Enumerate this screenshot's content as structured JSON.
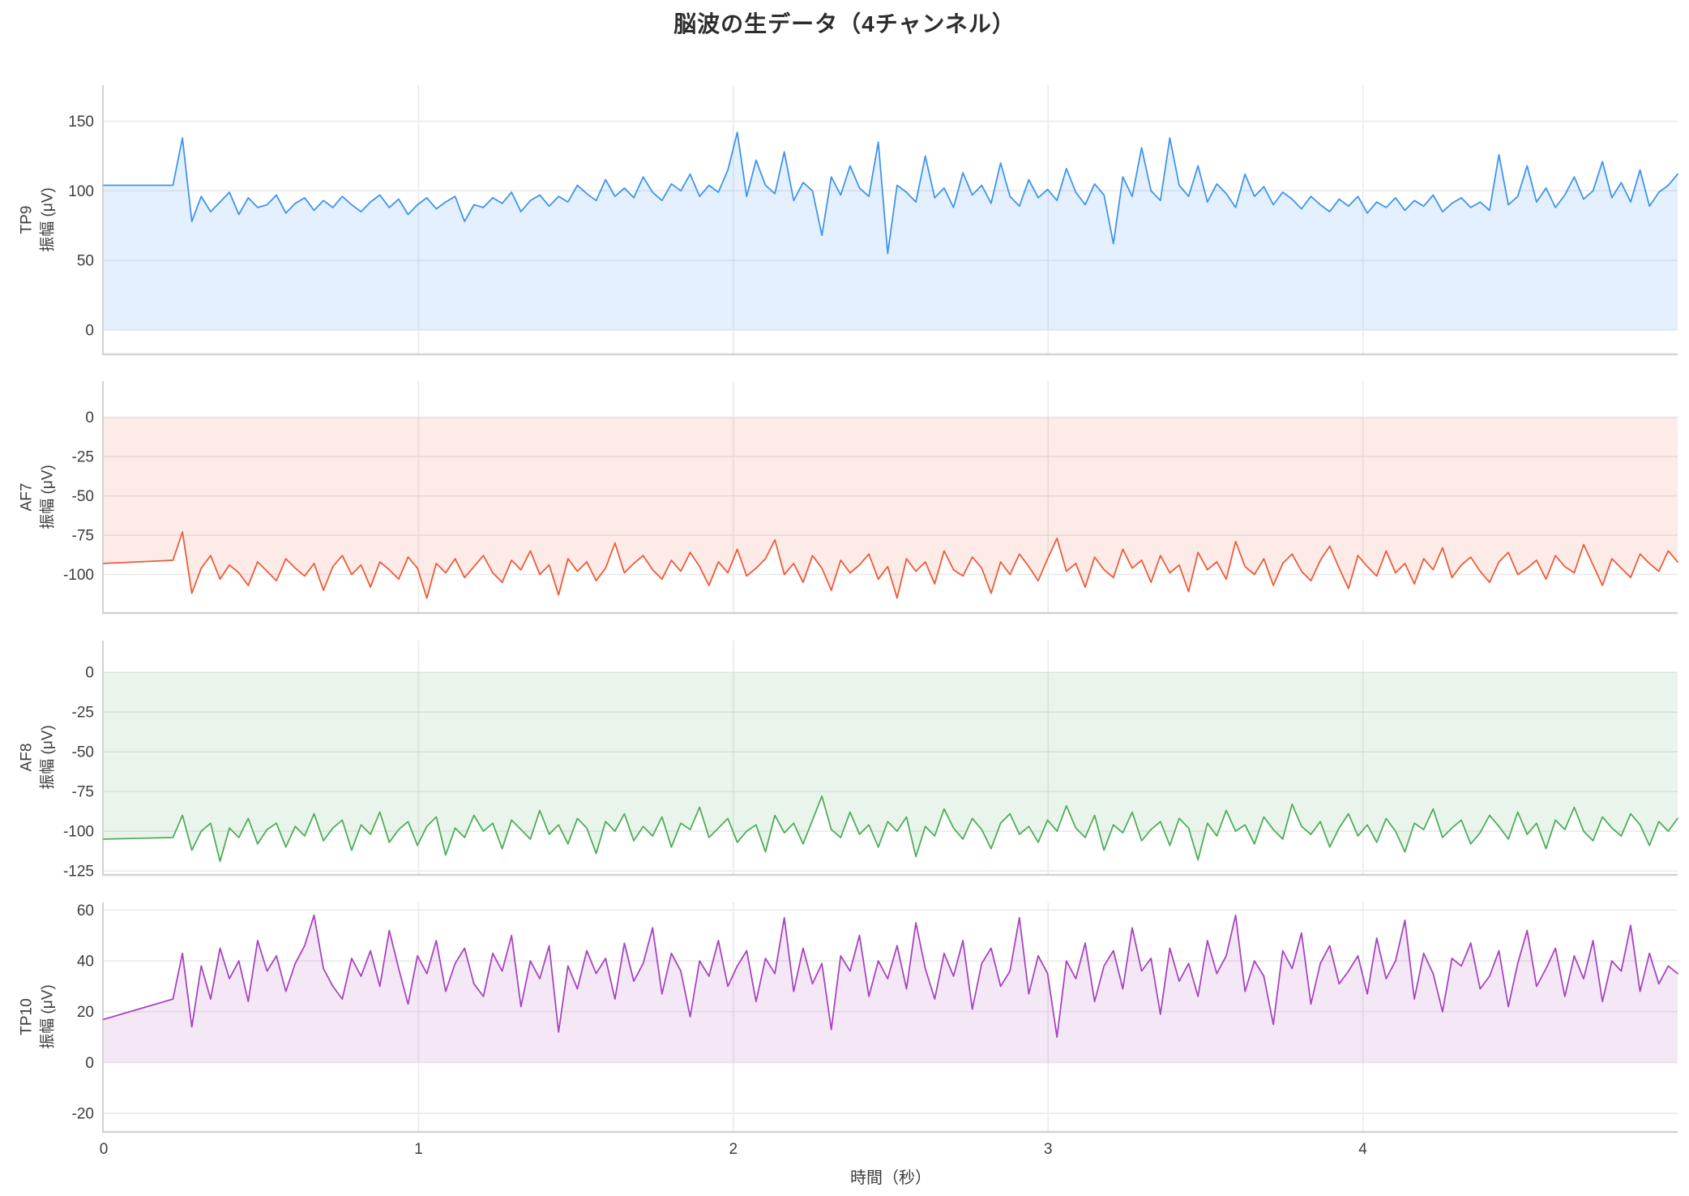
{
  "chart_data": {
    "type": "line",
    "title": "脳波の生データ（4チャンネル）",
    "xlabel": "時間（秒）",
    "x_range": [
      0,
      5
    ],
    "x_ticks": [
      0,
      1,
      2,
      3,
      4
    ],
    "flat_until_sec": 0.22,
    "grid": true,
    "legend": "none",
    "axis_color": "#d2d2d2",
    "grid_color": "#eaeaea",
    "tick_color": "#3d3d3d",
    "channels": [
      {
        "name": "TP9",
        "ylabel": "振幅 (μV)",
        "color": "#3f95ee",
        "fill_rgba": "rgba(63,149,238,0.14)",
        "ylim": [
          -17,
          176
        ],
        "yticks": [
          0,
          50,
          100,
          150
        ],
        "values": [
          104,
          104,
          138,
          78,
          96,
          85,
          92,
          99,
          83,
          95,
          88,
          90,
          97,
          84,
          91,
          95,
          86,
          93,
          88,
          96,
          90,
          85,
          92,
          97,
          88,
          94,
          83,
          90,
          95,
          87,
          92,
          96,
          78,
          90,
          88,
          95,
          91,
          99,
          85,
          93,
          97,
          89,
          96,
          92,
          104,
          98,
          93,
          108,
          96,
          102,
          95,
          110,
          99,
          93,
          105,
          100,
          112,
          96,
          104,
          99,
          115,
          142,
          96,
          122,
          104,
          98,
          128,
          93,
          106,
          100,
          68,
          110,
          97,
          118,
          102,
          96,
          135,
          55,
          104,
          99,
          92,
          125,
          95,
          102,
          88,
          113,
          97,
          104,
          91,
          120,
          96,
          89,
          108,
          95,
          101,
          93,
          116,
          99,
          90,
          105,
          97,
          62,
          110,
          96,
          131,
          100,
          93,
          138,
          104,
          96,
          118,
          92,
          105,
          98,
          88,
          112,
          96,
          103,
          90,
          99,
          94,
          87,
          96,
          90,
          85,
          94,
          89,
          96,
          84,
          92,
          88,
          95,
          86,
          93,
          89,
          97,
          85,
          91,
          95,
          88,
          92,
          86,
          126,
          90,
          96,
          118,
          92,
          102,
          88,
          97,
          110,
          94,
          100,
          121,
          95,
          106,
          92,
          115,
          89,
          99,
          104,
          112
        ]
      },
      {
        "name": "AF7",
        "ylabel": "振幅 (μV)",
        "color": "#ef5b3b",
        "fill_rgba": "rgba(239,91,59,0.12)",
        "ylim": [
          -124,
          23
        ],
        "yticks": [
          0,
          -25,
          -50,
          -75,
          -100
        ],
        "values": [
          -93,
          -91,
          -73,
          -112,
          -96,
          -88,
          -103,
          -94,
          -99,
          -107,
          -92,
          -98,
          -104,
          -90,
          -96,
          -101,
          -93,
          -110,
          -95,
          -88,
          -100,
          -94,
          -108,
          -92,
          -97,
          -103,
          -89,
          -96,
          -115,
          -93,
          -99,
          -90,
          -102,
          -95,
          -88,
          -99,
          -105,
          -91,
          -97,
          -85,
          -100,
          -94,
          -113,
          -90,
          -98,
          -92,
          -104,
          -96,
          -80,
          -99,
          -93,
          -88,
          -97,
          -103,
          -91,
          -98,
          -86,
          -95,
          -107,
          -92,
          -99,
          -84,
          -101,
          -96,
          -90,
          -78,
          -100,
          -93,
          -105,
          -88,
          -96,
          -110,
          -91,
          -99,
          -94,
          -87,
          -103,
          -95,
          -115,
          -90,
          -98,
          -92,
          -106,
          -85,
          -97,
          -101,
          -89,
          -96,
          -112,
          -92,
          -100,
          -87,
          -95,
          -104,
          -90,
          -77,
          -98,
          -93,
          -108,
          -89,
          -97,
          -102,
          -84,
          -96,
          -91,
          -105,
          -88,
          -99,
          -94,
          -111,
          -86,
          -97,
          -92,
          -103,
          -79,
          -95,
          -100,
          -90,
          -107,
          -93,
          -87,
          -98,
          -104,
          -91,
          -82,
          -96,
          -109,
          -88,
          -95,
          -101,
          -85,
          -99,
          -93,
          -106,
          -90,
          -97,
          -83,
          -102,
          -94,
          -89,
          -98,
          -105,
          -92,
          -86,
          -100,
          -96,
          -91,
          -103,
          -88,
          -95,
          -99,
          -81,
          -94,
          -107,
          -90,
          -96,
          -102,
          -87,
          -93,
          -98,
          -85,
          -92
        ]
      },
      {
        "name": "AF8",
        "ylabel": "振幅 (μV)",
        "color": "#4ead5b",
        "fill_rgba": "rgba(78,173,91,0.12)",
        "ylim": [
          -127,
          20
        ],
        "yticks": [
          0,
          -25,
          -50,
          -75,
          -100,
          -125
        ],
        "values": [
          -105,
          -104,
          -90,
          -112,
          -100,
          -95,
          -119,
          -98,
          -104,
          -92,
          -108,
          -99,
          -95,
          -110,
          -97,
          -103,
          -89,
          -106,
          -98,
          -93,
          -112,
          -96,
          -102,
          -88,
          -107,
          -99,
          -94,
          -109,
          -97,
          -91,
          -115,
          -98,
          -104,
          -90,
          -100,
          -95,
          -111,
          -93,
          -99,
          -105,
          -87,
          -102,
          -96,
          -108,
          -92,
          -98,
          -114,
          -94,
          -100,
          -89,
          -106,
          -97,
          -103,
          -91,
          -110,
          -95,
          -99,
          -85,
          -104,
          -98,
          -92,
          -107,
          -100,
          -96,
          -113,
          -90,
          -101,
          -95,
          -108,
          -93,
          -78,
          -99,
          -104,
          -88,
          -102,
          -96,
          -110,
          -94,
          -100,
          -91,
          -116,
          -97,
          -103,
          -86,
          -98,
          -105,
          -92,
          -99,
          -111,
          -95,
          -89,
          -102,
          -97,
          -107,
          -93,
          -100,
          -84,
          -98,
          -104,
          -90,
          -112,
          -96,
          -101,
          -88,
          -106,
          -99,
          -94,
          -109,
          -92,
          -98,
          -118,
          -95,
          -103,
          -87,
          -100,
          -96,
          -108,
          -91,
          -99,
          -105,
          -83,
          -97,
          -102,
          -94,
          -110,
          -98,
          -89,
          -103,
          -96,
          -107,
          -92,
          -100,
          -113,
          -95,
          -99,
          -86,
          -104,
          -98,
          -93,
          -108,
          -101,
          -90,
          -97,
          -105,
          -88,
          -102,
          -95,
          -111,
          -93,
          -99,
          -85,
          -100,
          -106,
          -91,
          -98,
          -103,
          -89,
          -96,
          -109,
          -94,
          -100,
          -92
        ]
      },
      {
        "name": "TP10",
        "ylabel": "振幅 (μV)",
        "color": "#a845bf",
        "fill_rgba": "rgba(168,69,191,0.12)",
        "ylim": [
          -27,
          63
        ],
        "yticks": [
          60,
          40,
          20,
          0,
          -20
        ],
        "values": [
          17,
          25,
          43,
          14,
          38,
          25,
          45,
          33,
          40,
          24,
          48,
          36,
          42,
          28,
          39,
          46,
          58,
          37,
          30,
          25,
          41,
          34,
          44,
          30,
          52,
          37,
          23,
          42,
          35,
          48,
          28,
          39,
          45,
          31,
          26,
          43,
          36,
          50,
          22,
          40,
          33,
          46,
          12,
          38,
          29,
          44,
          35,
          41,
          25,
          47,
          32,
          39,
          53,
          27,
          43,
          36,
          18,
          40,
          34,
          48,
          30,
          38,
          44,
          24,
          41,
          35,
          57,
          28,
          45,
          31,
          39,
          13,
          42,
          36,
          50,
          26,
          40,
          33,
          46,
          29,
          55,
          37,
          25,
          43,
          34,
          48,
          21,
          39,
          45,
          30,
          36,
          57,
          27,
          42,
          35,
          10,
          40,
          33,
          47,
          24,
          38,
          44,
          29,
          53,
          36,
          41,
          19,
          45,
          32,
          39,
          26,
          48,
          35,
          42,
          58,
          28,
          40,
          34,
          15,
          44,
          37,
          51,
          23,
          39,
          46,
          31,
          36,
          42,
          27,
          49,
          33,
          40,
          56,
          25,
          43,
          35,
          20,
          41,
          38,
          47,
          29,
          34,
          44,
          22,
          39,
          52,
          30,
          37,
          45,
          26,
          42,
          33,
          48,
          24,
          40,
          36,
          54,
          28,
          43,
          31,
          38,
          35
        ]
      }
    ]
  }
}
